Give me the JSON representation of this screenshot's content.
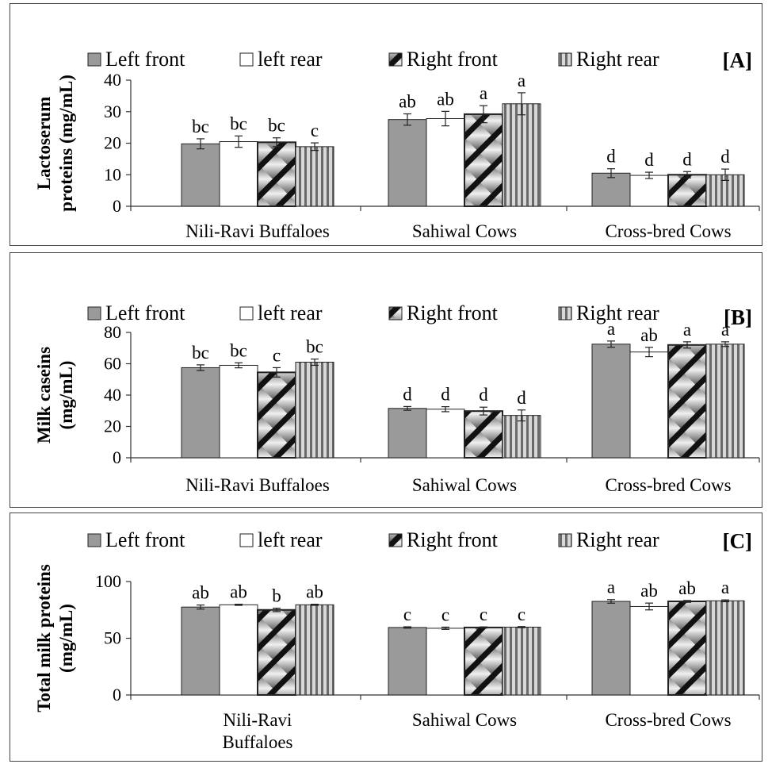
{
  "legend": [
    "Left front",
    "left rear",
    "Right front",
    "Right rear"
  ],
  "fills": {
    "left_front": "#9a9a9a",
    "left_rear": "#ffffff",
    "right_front": "diagonal-stripes",
    "right_rear": "vertical-stripes"
  },
  "chart_data": [
    {
      "type": "bar",
      "panel_label": "[A]",
      "ylabel": [
        "Lactoserum",
        "proteins (mg/mL)"
      ],
      "ylim": [
        0,
        40
      ],
      "yticks": [
        0,
        10,
        20,
        30,
        40
      ],
      "categories": [
        [
          "Nili-Ravi Buffaloes"
        ],
        [
          "Sahiwal Cows"
        ],
        [
          "Cross-bred Cows"
        ]
      ],
      "series": [
        {
          "name": "Left front",
          "values": [
            19.8,
            27.5,
            10.5
          ],
          "errors": [
            1.6,
            1.8,
            1.4
          ]
        },
        {
          "name": "left rear",
          "values": [
            20.5,
            27.8,
            9.8
          ],
          "errors": [
            1.8,
            2.3,
            1.0
          ]
        },
        {
          "name": "Right front",
          "values": [
            20.3,
            29.2,
            10.0
          ],
          "errors": [
            1.4,
            2.7,
            1.0
          ]
        },
        {
          "name": "Right rear",
          "values": [
            18.9,
            32.5,
            10.0
          ],
          "errors": [
            1.2,
            3.5,
            1.8
          ]
        }
      ],
      "labels": [
        [
          "bc",
          "ab",
          "d"
        ],
        [
          "bc",
          "ab",
          "d"
        ],
        [
          "bc",
          "a",
          "d"
        ],
        [
          "c",
          "a",
          "d"
        ]
      ]
    },
    {
      "type": "bar",
      "panel_label": "[B]",
      "ylabel": [
        "Milk caseins",
        "(mg/mL)"
      ],
      "ylim": [
        0,
        80
      ],
      "yticks": [
        0,
        20,
        40,
        60,
        80
      ],
      "categories": [
        [
          "Nili-Ravi Buffaloes"
        ],
        [
          "Sahiwal Cows"
        ],
        [
          "Cross-bred Cows"
        ]
      ],
      "series": [
        {
          "name": "Left front",
          "values": [
            57.5,
            31.5,
            72.5
          ],
          "errors": [
            1.8,
            1.2,
            2.0
          ]
        },
        {
          "name": "left rear",
          "values": [
            59.0,
            31.0,
            67.5
          ],
          "errors": [
            1.6,
            1.6,
            3.0
          ]
        },
        {
          "name": "Right front",
          "values": [
            54.5,
            29.8,
            72.0
          ],
          "errors": [
            3.0,
            2.5,
            2.0
          ]
        },
        {
          "name": "Right rear",
          "values": [
            61.0,
            27.0,
            72.5
          ],
          "errors": [
            2.0,
            3.5,
            1.5
          ]
        }
      ],
      "labels": [
        [
          "bc",
          "d",
          "a"
        ],
        [
          "bc",
          "d",
          "ab"
        ],
        [
          "c",
          "d",
          "a"
        ],
        [
          "bc",
          "d",
          "a"
        ]
      ]
    },
    {
      "type": "bar",
      "panel_label": "[C]",
      "ylabel": [
        "Total milk proteins",
        "(mg/mL)"
      ],
      "ylim": [
        0,
        100
      ],
      "yticks": [
        0,
        50,
        100
      ],
      "categories": [
        [
          "Nili-Ravi",
          "Buffaloes"
        ],
        [
          "Sahiwal Cows"
        ],
        [
          "Cross-bred Cows"
        ]
      ],
      "series": [
        {
          "name": "Left front",
          "values": [
            77.5,
            59.5,
            82.5
          ],
          "errors": [
            1.8,
            0.6,
            1.6
          ]
        },
        {
          "name": "left rear",
          "values": [
            79.5,
            58.8,
            78.0
          ],
          "errors": [
            0.5,
            1.0,
            3.0
          ]
        },
        {
          "name": "Right front",
          "values": [
            75.0,
            59.5,
            82.5
          ],
          "errors": [
            1.5,
            0.5,
            0.8
          ]
        },
        {
          "name": "Right rear",
          "values": [
            79.5,
            59.8,
            83.0
          ],
          "errors": [
            0.5,
            0.5,
            0.8
          ]
        }
      ],
      "labels": [
        [
          "ab",
          "c",
          "a"
        ],
        [
          "ab",
          "c",
          "ab"
        ],
        [
          "b",
          "c",
          "ab"
        ],
        [
          "ab",
          "c",
          "a"
        ]
      ]
    }
  ]
}
